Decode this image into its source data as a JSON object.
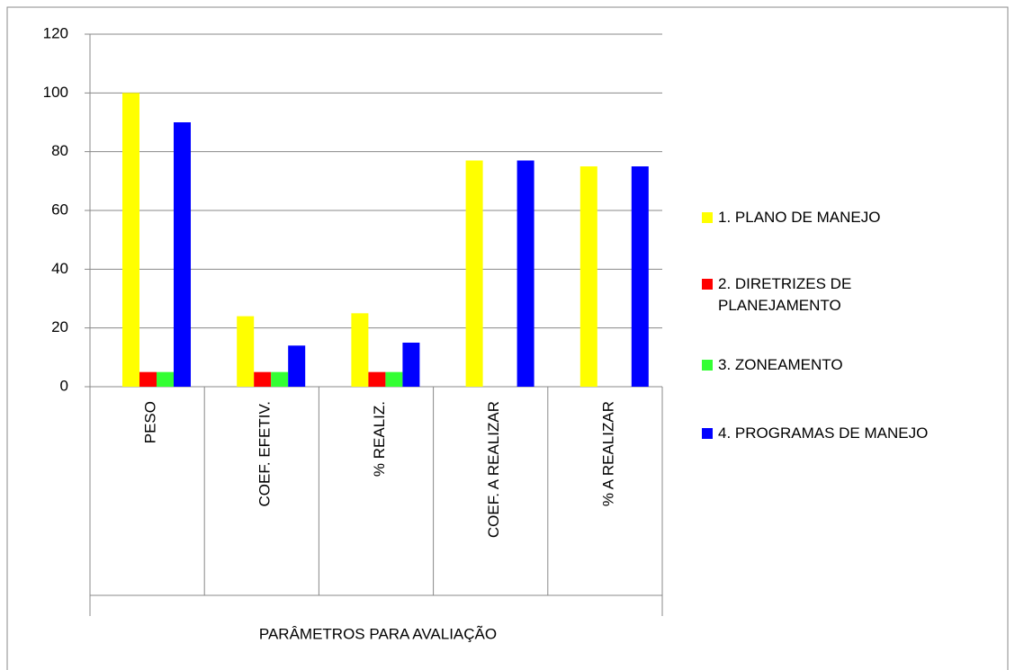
{
  "chart_data": {
    "type": "bar",
    "categories": [
      "PESO",
      "COEF. EFETIV.",
      "% REALIZ.",
      "COEF. A REALIZAR",
      "% A REALIZAR"
    ],
    "series": [
      {
        "name": "1. PLANO DE MANEJO",
        "color": "#ffff00",
        "values": [
          100,
          24,
          25,
          77,
          75
        ]
      },
      {
        "name": "2. DIRETRIZES DE PLANEJAMENTO",
        "color": "#ff0000",
        "values": [
          5,
          5,
          5,
          null,
          null
        ]
      },
      {
        "name": "3. ZONEAMENTO",
        "color": "#33ff33",
        "values": [
          5,
          5,
          5,
          null,
          null
        ]
      },
      {
        "name": "4. PROGRAMAS DE MANEJO",
        "color": "#0000ff",
        "values": [
          90,
          14,
          15,
          77,
          75
        ]
      }
    ],
    "x_label": "PARÂMETROS PARA AVALIAÇÃO",
    "ylim": [
      0,
      120
    ],
    "yticks": [
      0,
      20,
      40,
      60,
      80,
      100,
      120
    ],
    "grid": true,
    "legend": "right"
  }
}
